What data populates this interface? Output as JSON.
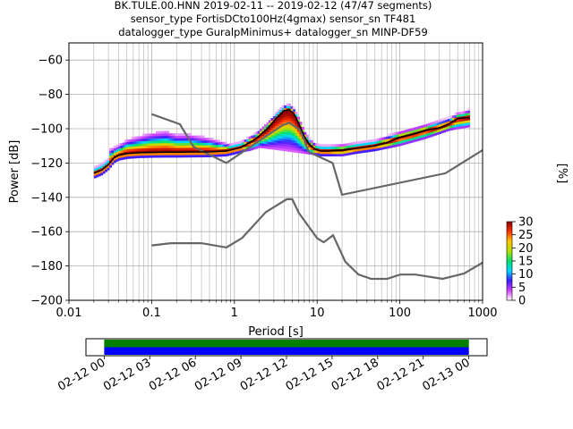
{
  "title_lines": [
    "BK.TULE.00.HNN   2019-02-11 -- 2019-02-12  (47/47 segments)",
    "sensor_type FortisDCto100Hz(4gmax) sensor_sn TF481",
    "datalogger_type GuralpMinimus+ datalogger_sn MINP-DF59"
  ],
  "chart_data": [
    {
      "type": "heatmap",
      "title": "BK.TULE.00.HNN   2019-02-11 -- 2019-02-12  (47/47 segments)",
      "xlabel": "Period [s]",
      "ylabel": "Power [dB]",
      "xscale": "log",
      "xlim": [
        0.01,
        1000
      ],
      "ylim": [
        -200,
        -50
      ],
      "x_tick_labels": [
        "0.01",
        "0.1",
        "1",
        "10",
        "100",
        "1000"
      ],
      "y_tick_labels": [
        "−200",
        "−180",
        "−160",
        "−140",
        "−120",
        "−100",
        "−80",
        "−60"
      ],
      "x_ticks": [
        0.01,
        0.1,
        1,
        10,
        100,
        1000
      ],
      "y_ticks": [
        -200,
        -180,
        -160,
        -140,
        -120,
        -100,
        -80,
        -60
      ],
      "grid": true,
      "colorbar": {
        "label": "[%]",
        "range": [
          0,
          30
        ],
        "tick_labels": [
          "0",
          "5",
          "10",
          "15",
          "20",
          "25",
          "30"
        ],
        "ticks": [
          0,
          5,
          10,
          15,
          20,
          25,
          30
        ],
        "colormap": [
          "#ffffff",
          "#d040ff",
          "#3a1cff",
          "#00d9ff",
          "#00e070",
          "#b6e000",
          "#ffc400",
          "#ff3000",
          "#8b0000"
        ]
      },
      "noise_models": {
        "color": "#666666",
        "nhnm": {
          "x": [
            0.1,
            0.22,
            0.32,
            0.8,
            3.8,
            4.6,
            6.3,
            7.9,
            15.4,
            20,
            354.8,
            1000
          ],
          "y": [
            -91.5,
            -97.4,
            -110.5,
            -120,
            -98,
            -96.5,
            -101,
            -113.5,
            -120,
            -138.5,
            -126,
            -112.5
          ]
        },
        "nlnm": {
          "x": [
            0.1,
            0.17,
            0.4,
            0.8,
            1.24,
            2.4,
            4.3,
            5,
            6,
            10,
            12,
            15.6,
            21.9,
            31.6,
            45,
            70,
            101,
            154,
            328,
            600,
            1000
          ],
          "y": [
            -168,
            -166.7,
            -166.7,
            -169.2,
            -163.7,
            -148.6,
            -141.1,
            -141.1,
            -149,
            -163.8,
            -166.2,
            -162.1,
            -177.5,
            -185,
            -187.5,
            -187.5,
            -185,
            -185,
            -187.5,
            -184.4,
            -178
          ]
        }
      },
      "median_psd": {
        "x": [
          0.02,
          0.025,
          0.03,
          0.035,
          0.04,
          0.05,
          0.07,
          0.1,
          0.15,
          0.2,
          0.3,
          0.5,
          0.8,
          1.2,
          1.8,
          2.5,
          3.2,
          4,
          4.6,
          5.2,
          6,
          7,
          8,
          9.5,
          11,
          14,
          20,
          30,
          50,
          70,
          100,
          150,
          200,
          300,
          400,
          500,
          700
        ],
        "y": [
          -126,
          -124,
          -121,
          -117,
          -115.5,
          -114.5,
          -114,
          -113.8,
          -113.7,
          -113.7,
          -113.6,
          -113.5,
          -113,
          -111,
          -106,
          -100,
          -94,
          -89.5,
          -89,
          -91,
          -97,
          -104.5,
          -109,
          -112,
          -113,
          -113,
          -112.5,
          -111.5,
          -110,
          -108,
          -105,
          -103,
          -101,
          -99.5,
          -97,
          -94,
          -93.5
        ]
      },
      "spread": {
        "x": [
          0.03,
          0.04,
          0.05,
          0.07,
          0.1,
          0.15,
          0.2,
          0.3,
          0.5,
          1,
          1.5,
          2,
          12,
          20,
          30,
          50,
          100,
          200,
          400,
          700
        ],
        "upper": [
          -113,
          -110,
          -107,
          -105,
          -103,
          -102,
          -104,
          -104,
          -106,
          -110,
          -110,
          -107,
          -111,
          -110.5,
          -109,
          -107,
          -102,
          -98,
          -94,
          -89
        ],
        "lower": [
          -117,
          -117,
          -117,
          -116,
          -115,
          -114.5,
          -114,
          -114,
          -114,
          -114,
          -113,
          -111,
          -116,
          -116,
          -114.5,
          -113,
          -110,
          -106,
          -101,
          -99
        ]
      }
    },
    {
      "type": "timeline",
      "xlim": [
        "02-12 00",
        "02-13 00"
      ],
      "tick_labels": [
        "02-12 00",
        "02-12 03",
        "02-12 06",
        "02-12 09",
        "02-12 12",
        "02-12 15",
        "02-12 18",
        "02-12 21",
        "02-13 00"
      ],
      "hours": [
        0,
        3,
        6,
        9,
        12,
        15,
        18,
        21,
        24
      ],
      "view_hours": [
        -1.2,
        25.2
      ],
      "bars": [
        {
          "color": "#008000",
          "start_hour": 0,
          "end_hour": 24
        },
        {
          "color": "#0000ff",
          "start_hour": 0,
          "end_hour": 24
        }
      ]
    }
  ]
}
